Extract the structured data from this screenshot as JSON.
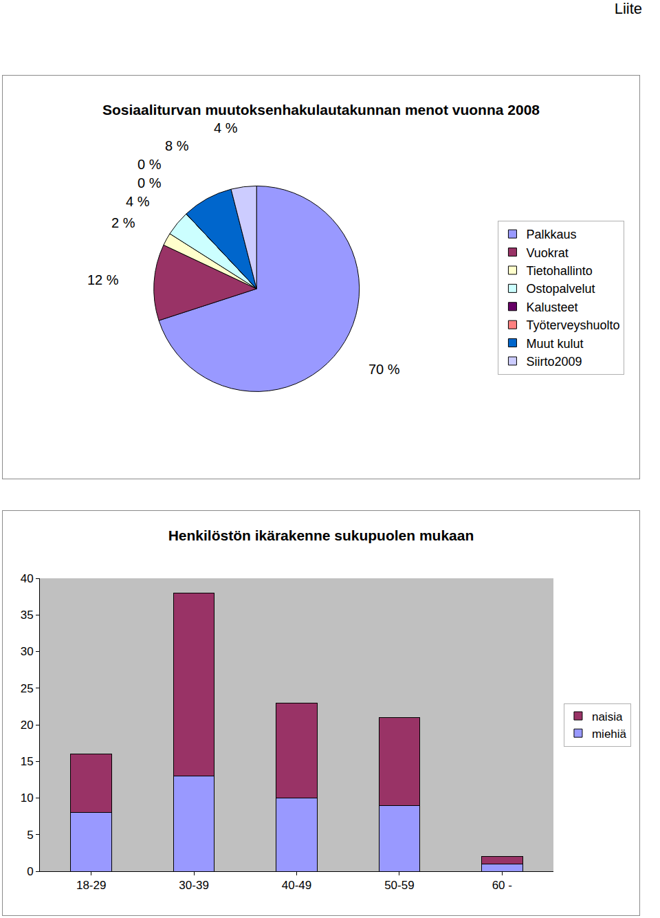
{
  "page": {
    "label": "Liite"
  },
  "chart_data": [
    {
      "type": "pie",
      "title": "Sosiaaliturvan muutoksenhakulautakunnan menot vuonna 2008",
      "categories": [
        "Palkkaus",
        "Vuokrat",
        "Tietohallinto",
        "Ostopalvelut",
        "Kalusteet",
        "Työterveyshuolto",
        "Muut kulut",
        "Siirto2009"
      ],
      "values": [
        70,
        12,
        2,
        4,
        0,
        0,
        8,
        4
      ],
      "value_labels": [
        "70 %",
        "12 %",
        "2 %",
        "4 %",
        "0 %",
        "0 %",
        "8 %",
        "4 %"
      ],
      "colors": [
        "#9999FF",
        "#993366",
        "#FFFFCC",
        "#CCFFFF",
        "#660066",
        "#FF8080",
        "#0066CC",
        "#CCCCFF"
      ],
      "data_labels": true,
      "legend": "right"
    },
    {
      "type": "bar",
      "title": "Henkilöstön ikärakenne sukupuolen mukaan",
      "categories": [
        "18-29",
        "30-39",
        "40-49",
        "50-59",
        "60 -"
      ],
      "series": [
        {
          "name": "miehiä",
          "color": "#9999FF",
          "values": [
            8,
            13,
            10,
            9,
            1
          ]
        },
        {
          "name": "naisia",
          "color": "#993366",
          "values": [
            8,
            25,
            13,
            12,
            1
          ]
        }
      ],
      "stacked": true,
      "ylim": [
        0,
        40
      ],
      "yticks": [
        0,
        5,
        10,
        15,
        20,
        25,
        30,
        35,
        40
      ],
      "grid": false,
      "legend": "right"
    }
  ]
}
